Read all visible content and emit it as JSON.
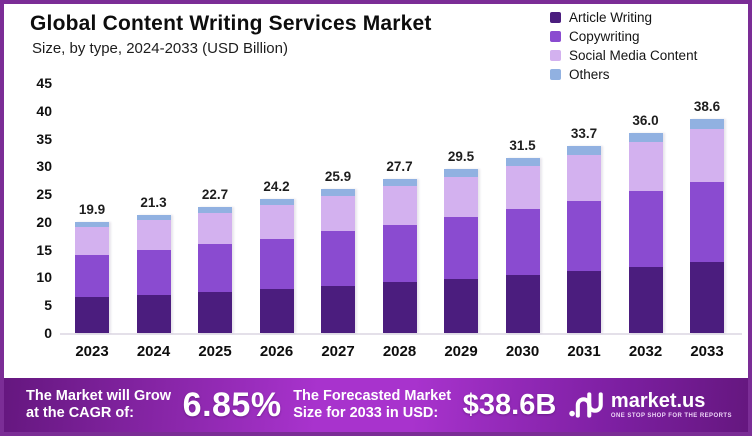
{
  "header": {
    "title": "Global Content Writing Services Market",
    "subtitle": "Size, by type, 2024-2033 (USD Billion)"
  },
  "legend": {
    "position": "top-right",
    "items": [
      {
        "label": "Article Writing",
        "color": "#4b1d7e"
      },
      {
        "label": "Copywriting",
        "color": "#8a4bd0"
      },
      {
        "label": "Social Media Content",
        "color": "#d3b1ef"
      },
      {
        "label": "Others",
        "color": "#91b1e1"
      }
    ]
  },
  "chart_data": {
    "type": "bar",
    "stacked": true,
    "title": "Global Content Writing Services Market",
    "subtitle": "Size, by type, 2024-2033 (USD Billion)",
    "unit": "USD Billion",
    "grid": false,
    "legend_position": "top-right",
    "categories": [
      "2023",
      "2024",
      "2025",
      "2026",
      "2027",
      "2028",
      "2029",
      "2030",
      "2031",
      "2032",
      "2033"
    ],
    "totals": [
      19.9,
      21.3,
      22.7,
      24.2,
      25.9,
      27.7,
      29.5,
      31.5,
      33.7,
      36.0,
      38.6
    ],
    "total_labels": [
      "19.9",
      "21.3",
      "22.7",
      "24.2",
      "25.9",
      "27.7",
      "29.5",
      "31.5",
      "33.7",
      "36.0",
      "38.6"
    ],
    "series": [
      {
        "name": "Article Writing",
        "color": "#4b1d7e",
        "values_estimated": true,
        "values": [
          6.4,
          6.9,
          7.4,
          7.9,
          8.5,
          9.1,
          9.7,
          10.4,
          11.1,
          11.9,
          12.8
        ]
      },
      {
        "name": "Copywriting",
        "color": "#8a4bd0",
        "values_estimated": true,
        "values": [
          7.6,
          8.0,
          8.6,
          9.1,
          9.8,
          10.4,
          11.1,
          11.9,
          12.7,
          13.6,
          14.4
        ]
      },
      {
        "name": "Social Media Content",
        "color": "#d3b1ef",
        "values_estimated": true,
        "values": [
          5.0,
          5.4,
          5.6,
          6.0,
          6.4,
          6.9,
          7.3,
          7.7,
          8.3,
          8.8,
          9.6
        ]
      },
      {
        "name": "Others",
        "color": "#91b1e1",
        "values_estimated": true,
        "values": [
          0.9,
          1.0,
          1.1,
          1.2,
          1.2,
          1.3,
          1.4,
          1.5,
          1.6,
          1.7,
          1.8
        ]
      }
    ],
    "y_axis": {
      "min": 0,
      "max": 45,
      "tick_step": 5,
      "ticks": [
        0,
        5,
        10,
        15,
        20,
        25,
        30,
        35,
        40,
        45
      ]
    }
  },
  "banner": {
    "cagr_label_line1": "The Market will Grow",
    "cagr_label_line2": "at the CAGR of:",
    "cagr_value": "6.85%",
    "forecast_label_line1": "The Forecasted Market",
    "forecast_label_line2": "Size for 2033 in USD:",
    "forecast_value": "$38.6B",
    "brand": "market.us",
    "brand_tagline": "ONE STOP SHOP FOR THE REPORTS"
  },
  "colors": {
    "page_border": "#7b2d96",
    "banner_gradient_edge": "#65177f",
    "banner_gradient_mid": "#a833cd",
    "banner_gradient_right": "#7d1fa2",
    "axis_line": "#e4e0e9",
    "text_dark": "#0d0d0d"
  }
}
